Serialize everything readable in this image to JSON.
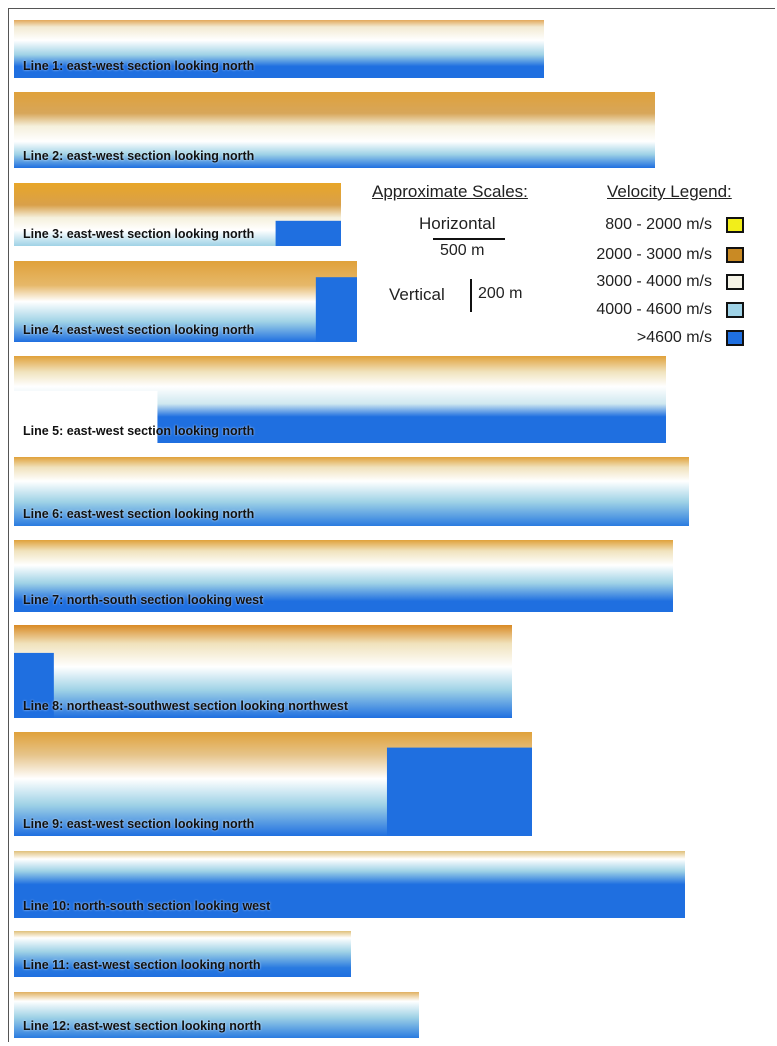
{
  "sections": [
    {
      "label": "Line 1: east-west section looking north"
    },
    {
      "label": "Line 2: east-west section looking north"
    },
    {
      "label": "Line 3: east-west section looking north"
    },
    {
      "label": "Line 4: east-west section looking north"
    },
    {
      "label": "Line 5: east-west section looking north"
    },
    {
      "label": "Line 6: east-west section looking north"
    },
    {
      "label": "Line 7: north-south section looking west"
    },
    {
      "label": "Line 8: northeast-southwest section looking northwest"
    },
    {
      "label": "Line 9: east-west section looking north"
    },
    {
      "label": "Line 10: north-south section looking west"
    },
    {
      "label": "Line 11: east-west section looking north"
    },
    {
      "label": "Line 12: east-west section looking north"
    }
  ],
  "scales": {
    "title": "Approximate Scales:",
    "horizontal_label": "Horizontal",
    "horizontal_value": "500 m",
    "vertical_label": "Vertical",
    "vertical_value": "200 m"
  },
  "legend": {
    "title": "Velocity Legend:",
    "items": [
      {
        "label": "800 - 2000 m/s",
        "color": "#f2ee1a"
      },
      {
        "label": "2000 - 3000 m/s",
        "color": "#c98a24"
      },
      {
        "label": "3000 - 4000 m/s",
        "color": "#f5f3e6"
      },
      {
        "label": "4000 - 4600 m/s",
        "color": "#9fd2e6"
      },
      {
        "label": ">4600 m/s",
        "color": "#1f6fe0"
      }
    ]
  }
}
